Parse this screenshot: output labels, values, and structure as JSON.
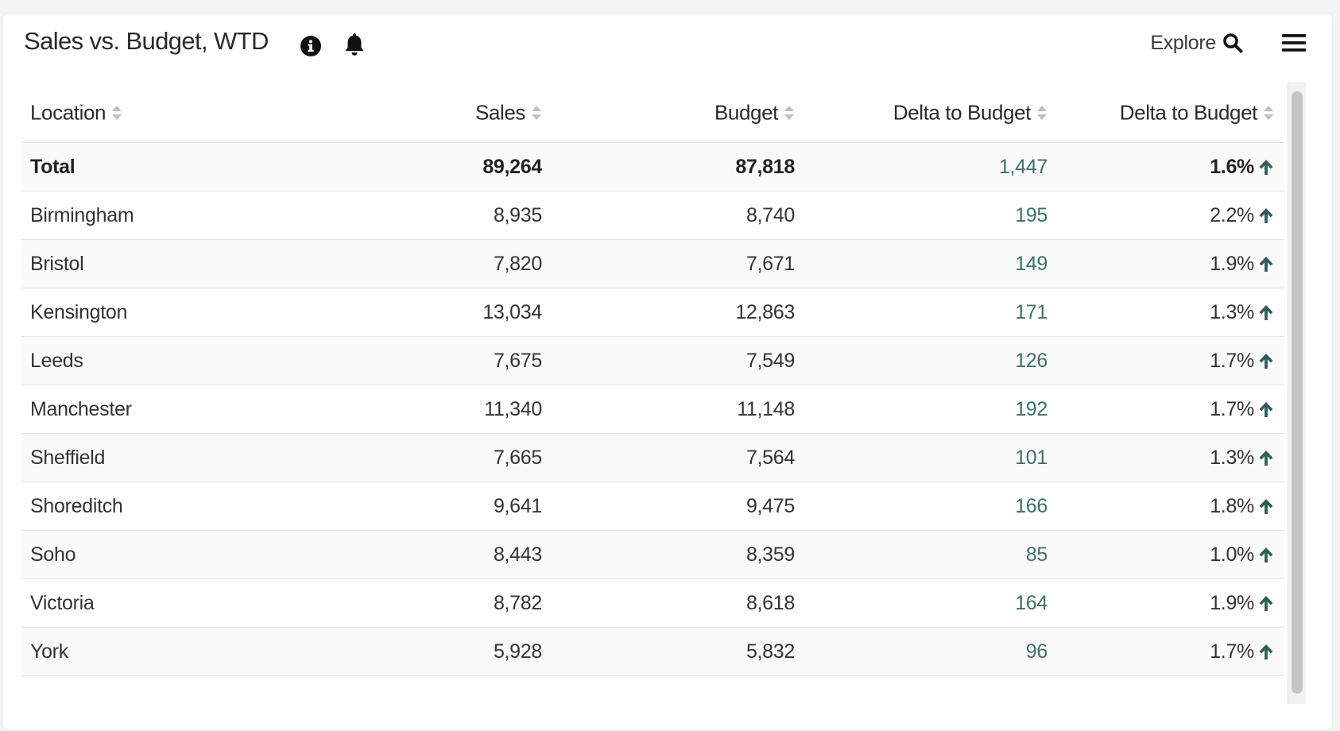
{
  "header": {
    "title": "Sales vs. Budget, WTD",
    "explore_label": "Explore"
  },
  "icons": {
    "info": "info-circle-icon",
    "bell": "bell-icon",
    "search": "search-icon",
    "menu": "hamburger-menu-icon",
    "sort": "sort-icon",
    "trend": "arrow-up-icon"
  },
  "colors": {
    "delta_text": "#3d7168",
    "arrow": "#2f5e57"
  },
  "table": {
    "columns": [
      "Location",
      "Sales",
      "Budget",
      "Delta to Budget",
      "Delta to Budget"
    ],
    "total": {
      "location": "Total",
      "sales": "89,264",
      "budget": "87,818",
      "delta": "1,447",
      "delta_pct": "1.6%"
    },
    "rows": [
      {
        "location": "Birmingham",
        "sales": "8,935",
        "budget": "8,740",
        "delta": "195",
        "delta_pct": "2.2%"
      },
      {
        "location": "Bristol",
        "sales": "7,820",
        "budget": "7,671",
        "delta": "149",
        "delta_pct": "1.9%"
      },
      {
        "location": "Kensington",
        "sales": "13,034",
        "budget": "12,863",
        "delta": "171",
        "delta_pct": "1.3%"
      },
      {
        "location": "Leeds",
        "sales": "7,675",
        "budget": "7,549",
        "delta": "126",
        "delta_pct": "1.7%"
      },
      {
        "location": "Manchester",
        "sales": "11,340",
        "budget": "11,148",
        "delta": "192",
        "delta_pct": "1.7%"
      },
      {
        "location": "Sheffield",
        "sales": "7,665",
        "budget": "7,564",
        "delta": "101",
        "delta_pct": "1.3%"
      },
      {
        "location": "Shoreditch",
        "sales": "9,641",
        "budget": "9,475",
        "delta": "166",
        "delta_pct": "1.8%"
      },
      {
        "location": "Soho",
        "sales": "8,443",
        "budget": "8,359",
        "delta": "85",
        "delta_pct": "1.0%"
      },
      {
        "location": "Victoria",
        "sales": "8,782",
        "budget": "8,618",
        "delta": "164",
        "delta_pct": "1.9%"
      },
      {
        "location": "York",
        "sales": "5,928",
        "budget": "5,832",
        "delta": "96",
        "delta_pct": "1.7%"
      }
    ]
  }
}
